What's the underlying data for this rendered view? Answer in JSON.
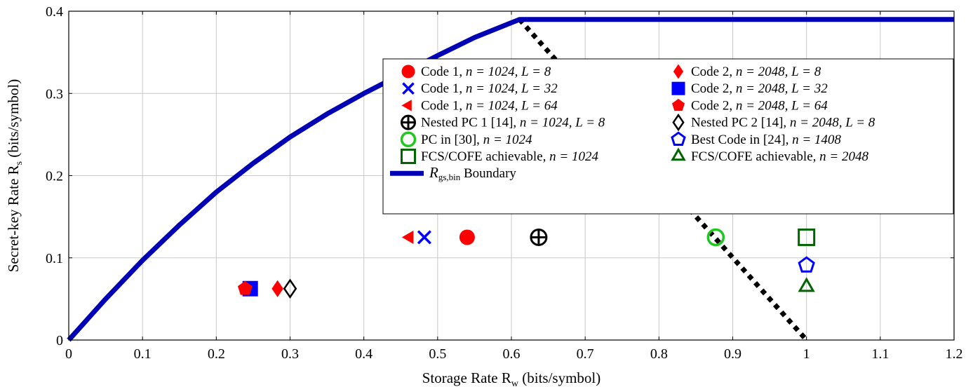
{
  "chart_data": {
    "type": "scatter",
    "xlabel": "Storage Rate R",
    "xlabel_sub": "w",
    "xlabel_unit": "(bits/symbol)",
    "ylabel": "Secret-key Rate R",
    "ylabel_sub": "s",
    "ylabel_unit": "(bits/symbol)",
    "xlim": [
      0,
      1.2
    ],
    "ylim": [
      0,
      0.4
    ],
    "xticks": [
      "0",
      "0.1",
      "0.2",
      "0.3",
      "0.4",
      "0.5",
      "0.6",
      "0.7",
      "0.8",
      "0.9",
      "1",
      "1.1",
      "1.2"
    ],
    "yticks": [
      "0",
      "0.1",
      "0.2",
      "0.3",
      "0.4"
    ],
    "grid": true,
    "legend_position": "top-right",
    "series": [
      {
        "name": "Code 1, n=1024, L=8",
        "legend_pre": "Code 1, ",
        "legend_math": "n = 1024, L = 8",
        "marker": "circle-filled",
        "color": "#ff0000",
        "x": 0.54,
        "y": 0.125
      },
      {
        "name": "Code 2, n=2048, L=8",
        "legend_pre": "Code 2, ",
        "legend_math": "n = 2048, L = 8",
        "marker": "diamond-filled",
        "color": "#ff0000",
        "x": 0.283,
        "y": 0.0625
      },
      {
        "name": "Code 1, n=1024, L=32",
        "legend_pre": "Code 1, ",
        "legend_math": "n = 1024, L = 32",
        "marker": "x",
        "color": "#0000ff",
        "x": 0.482,
        "y": 0.125
      },
      {
        "name": "Code 2, n=2048, L=32",
        "legend_pre": "Code 2, ",
        "legend_math": "n = 2048, L = 32",
        "marker": "square-filled",
        "color": "#0000ff",
        "x": 0.246,
        "y": 0.0625
      },
      {
        "name": "Code 1, n=1024, L=64",
        "legend_pre": "Code 1, ",
        "legend_math": "n = 1024, L = 64",
        "marker": "triangle-left-filled",
        "color": "#ff0000",
        "x": 0.462,
        "y": 0.125
      },
      {
        "name": "Code 2, n=2048, L=64",
        "legend_pre": "Code 2, ",
        "legend_math": "n = 2048, L = 64",
        "marker": "pentagon-filled",
        "color": "#ff0000",
        "x": 0.239,
        "y": 0.0625
      },
      {
        "name": "Nested PC 1 [14], n=1024, L=8",
        "legend_pre": "Nested PC 1 [14], ",
        "legend_math": "n = 1024, L = 8",
        "marker": "oplus",
        "color": "#000000",
        "x": 0.637,
        "y": 0.125
      },
      {
        "name": "Nested PC 2 [14], n=2048, L=8",
        "legend_pre": "Nested PC 2 [14], ",
        "legend_math": "n = 2048, L = 8",
        "marker": "diamond-open",
        "color": "#000000",
        "x": 0.3,
        "y": 0.0625
      },
      {
        "name": "PC in [30], n=1024",
        "legend_pre": "PC in [30], ",
        "legend_math": "n = 1024",
        "marker": "circle-open",
        "color": "#1ec81e",
        "x": 0.877,
        "y": 0.125
      },
      {
        "name": "Best Code in [24], n=1408",
        "legend_pre": "Best Code in [24], ",
        "legend_math": "n = 1408",
        "marker": "pentagon-open",
        "color": "#0000ff",
        "x": 1.0,
        "y": 0.091
      },
      {
        "name": "FCS/COFE achievable, n=1024",
        "legend_pre": "FCS/COFE achievable, ",
        "legend_math": "n = 1024",
        "marker": "square-open",
        "color": "#006400",
        "x": 1.0,
        "y": 0.125
      },
      {
        "name": "FCS/COFE achievable, n=2048",
        "legend_pre": "FCS/COFE achievable, ",
        "legend_math": "n = 2048",
        "marker": "triangle-open",
        "color": "#006400",
        "x": 1.0,
        "y": 0.0645
      }
    ],
    "boundary": {
      "name": "R_gs,bin Boundary",
      "legend_symbol": "R",
      "legend_sub": "gs,bin",
      "legend_text": "Boundary",
      "color": "#0000b4",
      "x": [
        0,
        0.05,
        0.1,
        0.15,
        0.2,
        0.25,
        0.3,
        0.35,
        0.4,
        0.45,
        0.5,
        0.55,
        0.6,
        0.611,
        1.2
      ],
      "y": [
        0,
        0.05,
        0.097,
        0.14,
        0.18,
        0.215,
        0.247,
        0.275,
        0.3,
        0.323,
        0.346,
        0.368,
        0.386,
        0.39,
        0.39
      ]
    },
    "dotted_line": {
      "color": "#000000",
      "x": [
        0.611,
        1.0
      ],
      "y": [
        0.39,
        0.0
      ]
    }
  }
}
